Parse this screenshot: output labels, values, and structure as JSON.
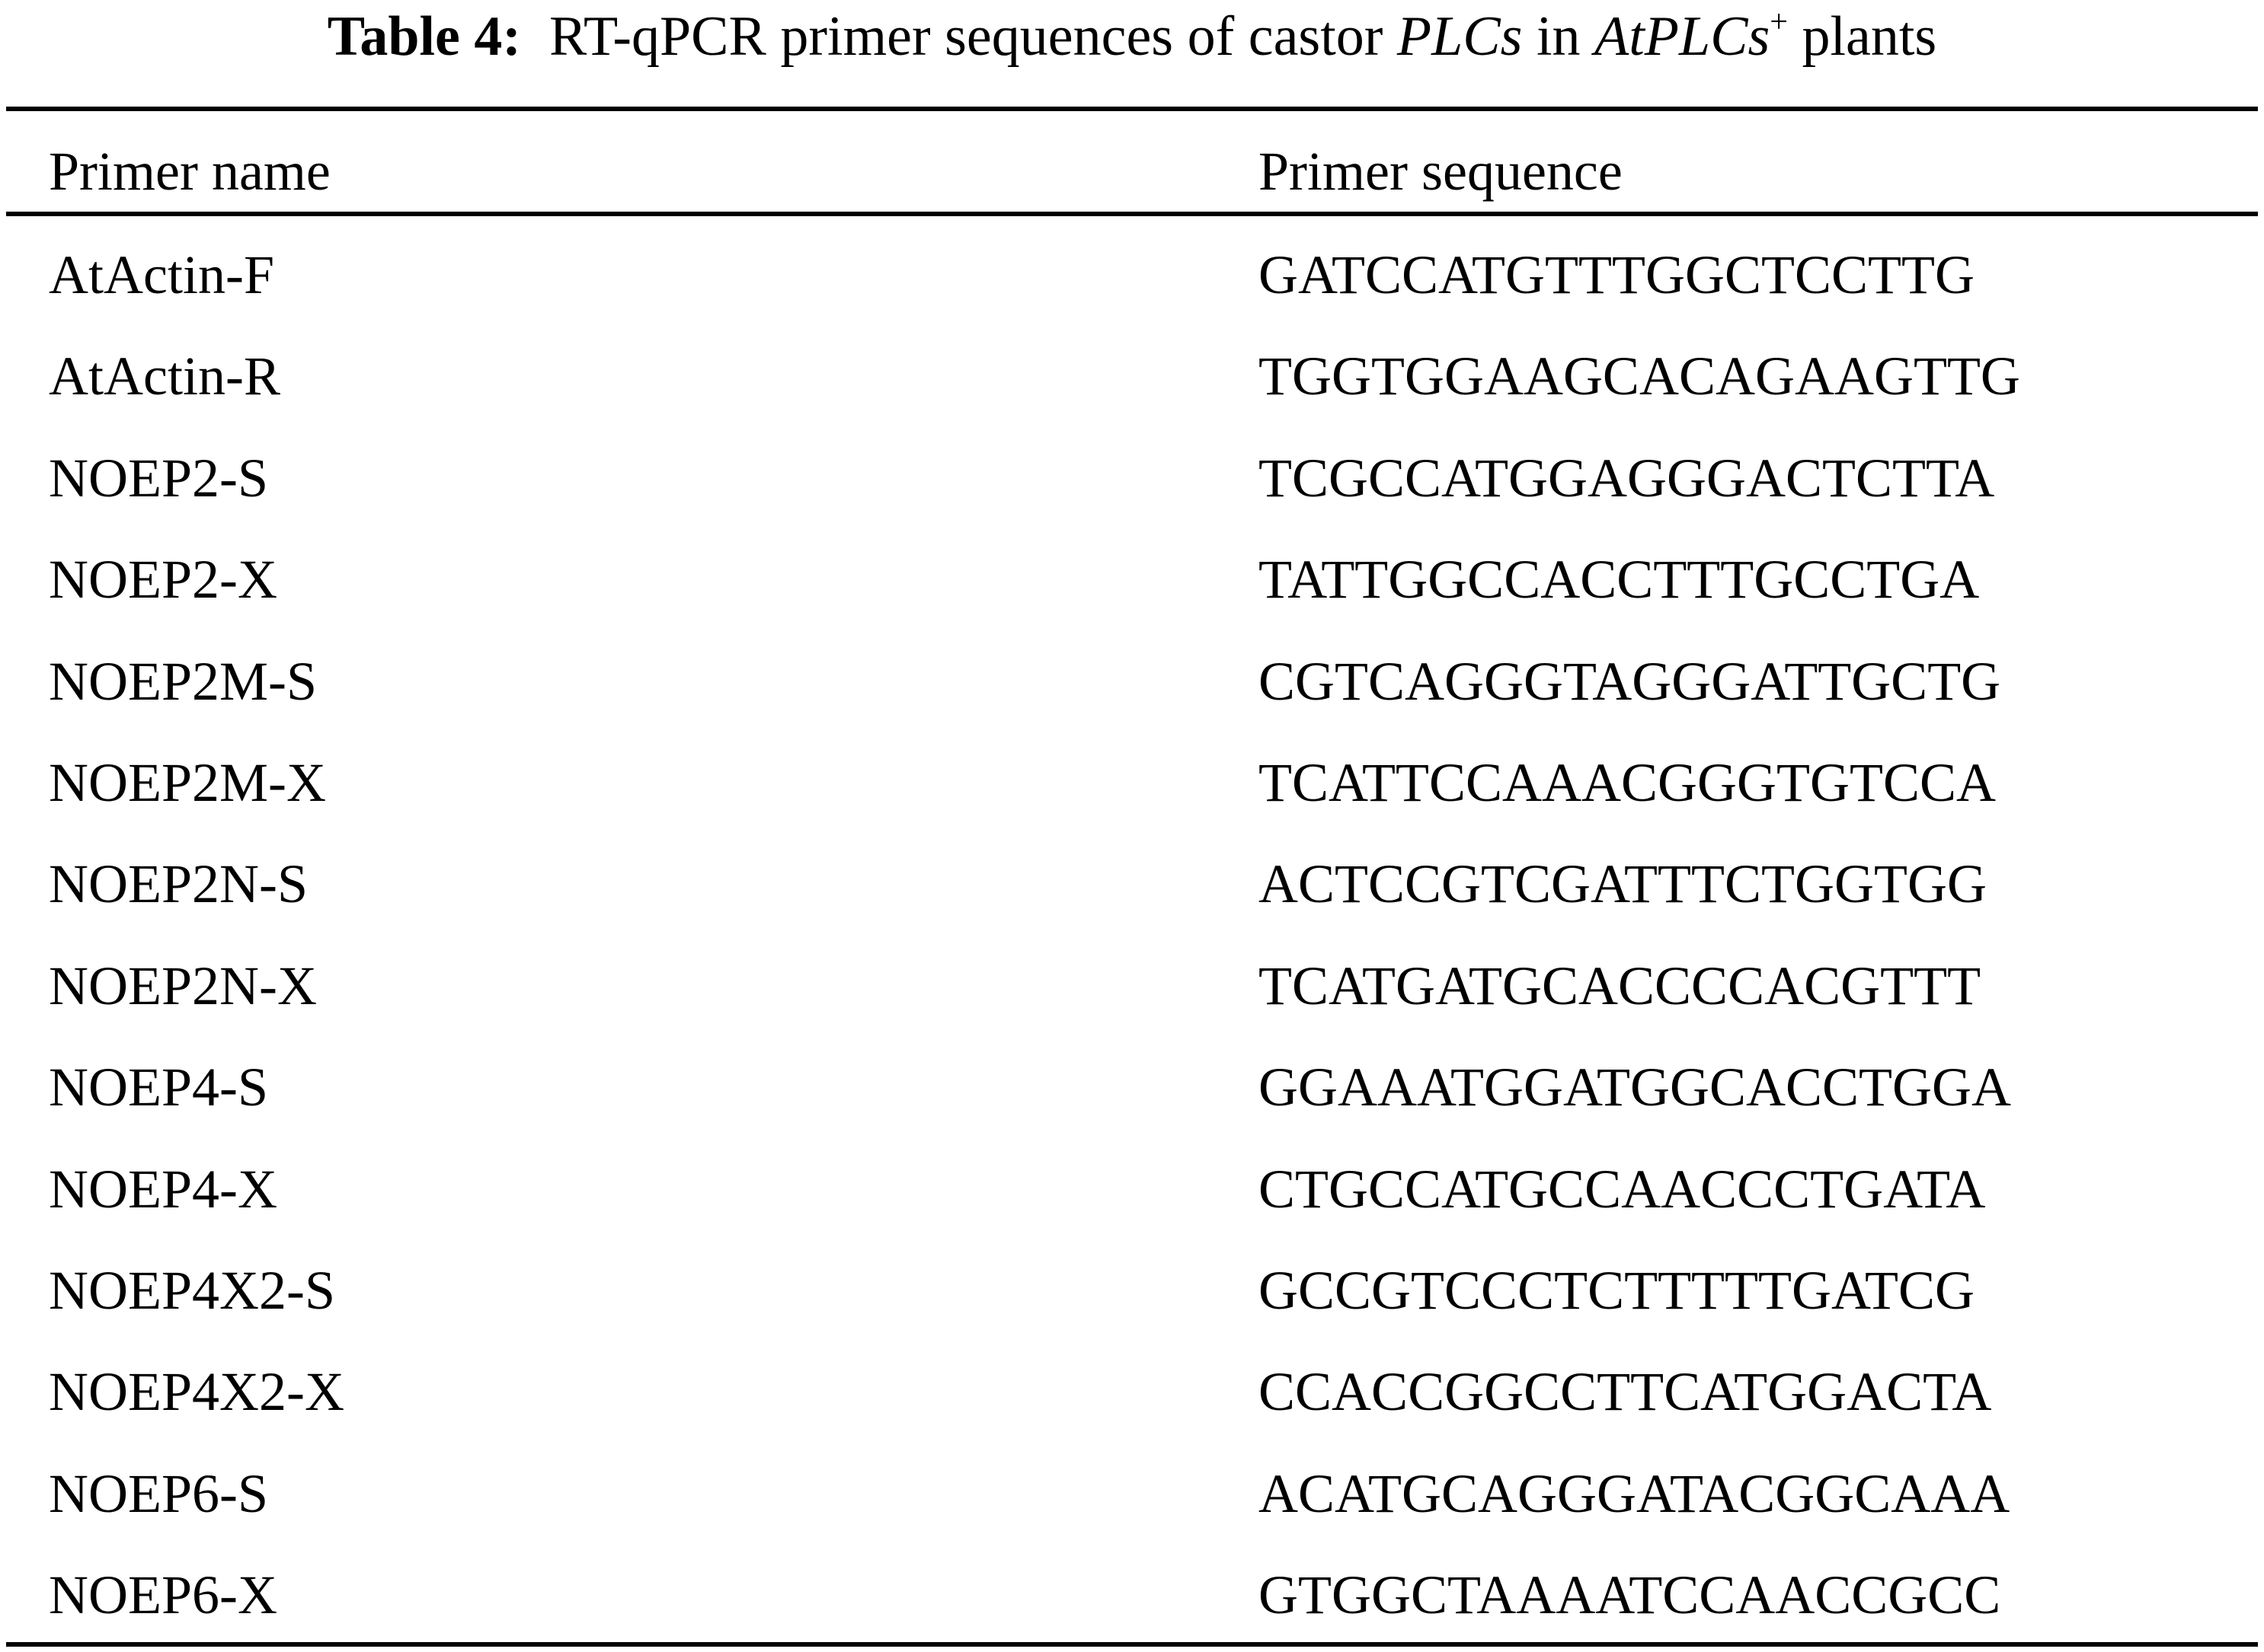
{
  "title": {
    "label": "Table 4:",
    "text_a": "RT-qPCR primer sequences of castor ",
    "italic_a": "PLCs",
    "text_b": " in ",
    "italic_b": "AtPLCs",
    "superscript": "+",
    "text_c": " plants"
  },
  "table": {
    "headers": [
      "Primer name",
      "Primer sequence"
    ],
    "rows": [
      [
        "AtActin-F",
        "GATCCATGTTTGGCTCCTTG"
      ],
      [
        "AtActin-R",
        "TGGTGGAAGCACAGAAGTTG"
      ],
      [
        "NOEP2-S",
        "TCGCCATGGAGGGACTCTTA"
      ],
      [
        "NOEP2-X",
        "TATTGGCCACCTTTGCCTGA"
      ],
      [
        "NOEP2M-S",
        "CGTCAGGGTAGGGATTGCTG"
      ],
      [
        "NOEP2M-X",
        "TCATTCCAAACGGGTGTCCA"
      ],
      [
        "NOEP2N-S",
        "ACTCCGTCGATTTCTGGTGG"
      ],
      [
        "NOEP2N-X",
        "TCATGATGCACCCCACGTTT"
      ],
      [
        "NOEP4-S",
        "GGAAATGGATGGCACCTGGA"
      ],
      [
        "NOEP4-X",
        "CTGCCATGCCAACCCTGATA"
      ],
      [
        "NOEP4X2-S",
        "GCCGTCCCTCTTTTTGATCG"
      ],
      [
        "NOEP4X2-X",
        "CCACCGGCCTTCATGGACTA"
      ],
      [
        "NOEP6-S",
        "ACATGCAGGGATACGGCAAA"
      ],
      [
        "NOEP6-X",
        "GTGGCTAAAATCCAACCGCC"
      ]
    ]
  }
}
